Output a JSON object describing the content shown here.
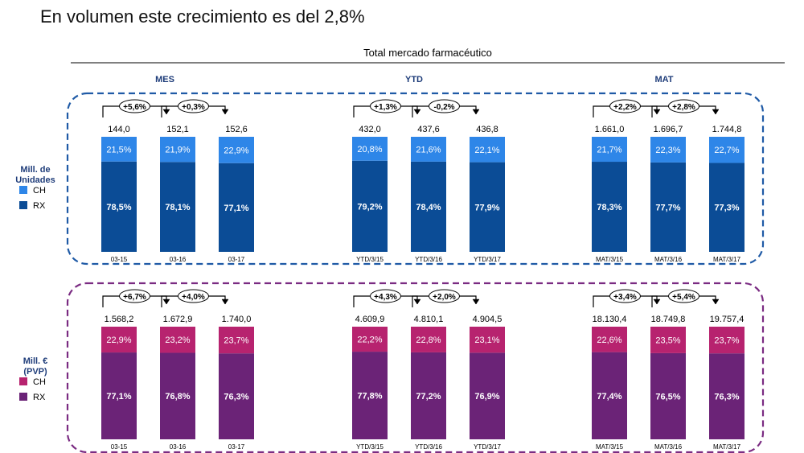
{
  "headline": "En volumen este crecimiento es del 2,8%",
  "colors": {
    "units_ch": "#2e86e8",
    "units_rx": "#0b4c96",
    "value_ch": "#b7236f",
    "value_rx": "#6b2377",
    "units_frame": "#1f5aa6",
    "value_frame": "#7a2b82",
    "header_label": "#1f3d7a",
    "legend_label": "#1f3d7a"
  },
  "chart_data": {
    "type": "bar",
    "title": "Total mercado farmacéutico",
    "stacked": true,
    "normalized": true,
    "panel_titles": [
      "MES",
      "YTD",
      "MAT"
    ],
    "rows": [
      {
        "key": "units",
        "ylabel": "Mill. de Unidades",
        "legend": [
          {
            "name": "CH",
            "color": "#2e86e8"
          },
          {
            "name": "RX",
            "color": "#0b4c96"
          }
        ],
        "panels": [
          {
            "categories": [
              "03-15",
              "03-16",
              "03-17"
            ],
            "totals": [
              "144,0",
              "152,1",
              "152,6"
            ],
            "series": [
              {
                "name": "RX",
                "values": [
                  78.5,
                  78.1,
                  77.1
                ],
                "labels": [
                  "78,5%",
                  "78,1%",
                  "77,1%"
                ]
              },
              {
                "name": "CH",
                "values": [
                  21.5,
                  21.9,
                  22.9
                ],
                "labels": [
                  "21,5%",
                  "21,9%",
                  "22,9%"
                ]
              }
            ],
            "growth": [
              "+5,6%",
              "+0,3%"
            ]
          },
          {
            "categories": [
              "YTD/3/15",
              "YTD/3/16",
              "YTD/3/17"
            ],
            "totals": [
              "432,0",
              "437,6",
              "436,8"
            ],
            "series": [
              {
                "name": "RX",
                "values": [
                  79.2,
                  78.4,
                  77.9
                ],
                "labels": [
                  "79,2%",
                  "78,4%",
                  "77,9%"
                ]
              },
              {
                "name": "CH",
                "values": [
                  20.8,
                  21.6,
                  22.1
                ],
                "labels": [
                  "20,8%",
                  "21,6%",
                  "22,1%"
                ]
              }
            ],
            "growth": [
              "+1,3%",
              "-0,2%"
            ]
          },
          {
            "categories": [
              "MAT/3/15",
              "MAT/3/16",
              "MAT/3/17"
            ],
            "totals": [
              "1.661,0",
              "1.696,7",
              "1.744,8"
            ],
            "series": [
              {
                "name": "RX",
                "values": [
                  78.3,
                  77.7,
                  77.3
                ],
                "labels": [
                  "78,3%",
                  "77,7%",
                  "77,3%"
                ]
              },
              {
                "name": "CH",
                "values": [
                  21.7,
                  22.3,
                  22.7
                ],
                "labels": [
                  "21,7%",
                  "22,3%",
                  "22,7%"
                ]
              }
            ],
            "growth": [
              "+2,2%",
              "+2,8%"
            ]
          }
        ]
      },
      {
        "key": "value",
        "ylabel": "Mill. € (PVP)",
        "legend": [
          {
            "name": "CH",
            "color": "#b7236f"
          },
          {
            "name": "RX",
            "color": "#6b2377"
          }
        ],
        "panels": [
          {
            "categories": [
              "03-15",
              "03-16",
              "03-17"
            ],
            "totals": [
              "1.568,2",
              "1.672,9",
              "1.740,0"
            ],
            "series": [
              {
                "name": "RX",
                "values": [
                  77.1,
                  76.8,
                  76.3
                ],
                "labels": [
                  "77,1%",
                  "76,8%",
                  "76,3%"
                ]
              },
              {
                "name": "CH",
                "values": [
                  22.9,
                  23.2,
                  23.7
                ],
                "labels": [
                  "22,9%",
                  "23,2%",
                  "23,7%"
                ]
              }
            ],
            "growth": [
              "+6,7%",
              "+4,0%"
            ]
          },
          {
            "categories": [
              "YTD/3/15",
              "YTD/3/16",
              "YTD/3/17"
            ],
            "totals": [
              "4.609,9",
              "4.810,1",
              "4.904,5"
            ],
            "series": [
              {
                "name": "RX",
                "values": [
                  77.8,
                  77.2,
                  76.9
                ],
                "labels": [
                  "77,8%",
                  "77,2%",
                  "76,9%"
                ]
              },
              {
                "name": "CH",
                "values": [
                  22.2,
                  22.8,
                  23.1
                ],
                "labels": [
                  "22,2%",
                  "22,8%",
                  "23,1%"
                ]
              }
            ],
            "growth": [
              "+4,3%",
              "+2,0%"
            ]
          },
          {
            "categories": [
              "MAT/3/15",
              "MAT/3/16",
              "MAT/3/17"
            ],
            "totals": [
              "18.130,4",
              "18.749,8",
              "19.757,4"
            ],
            "series": [
              {
                "name": "RX",
                "values": [
                  77.4,
                  76.5,
                  76.3
                ],
                "labels": [
                  "77,4%",
                  "76,5%",
                  "76,3%"
                ]
              },
              {
                "name": "CH",
                "values": [
                  22.6,
                  23.5,
                  23.7
                ],
                "labels": [
                  "22,6%",
                  "23,5%",
                  "23,7%"
                ]
              }
            ],
            "growth": [
              "+3,4%",
              "+5,4%"
            ]
          }
        ]
      }
    ]
  }
}
